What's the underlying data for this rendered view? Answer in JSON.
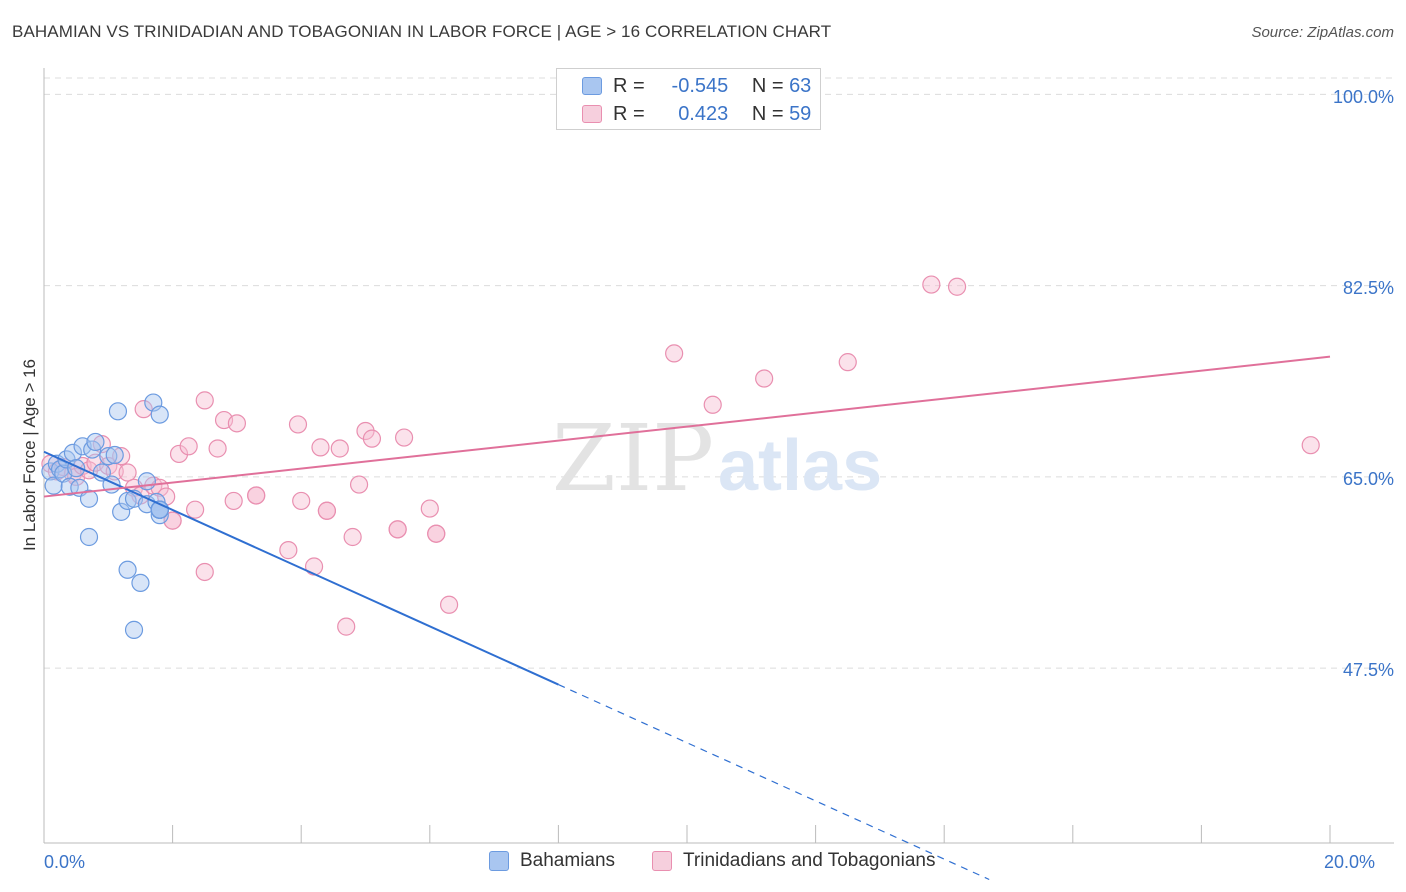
{
  "title": "BAHAMIAN VS TRINIDADIAN AND TOBAGONIAN IN LABOR FORCE | AGE > 16 CORRELATION CHART",
  "source": "Source: ZipAtlas.com",
  "watermark": {
    "zip": "ZIP",
    "atlas": "atlas"
  },
  "legend_top": {
    "rows": [
      {
        "r_label": "R =",
        "r_value": "-0.545",
        "n_label": "N =",
        "n_value": "63"
      },
      {
        "r_label": "R =",
        "r_value": "0.423",
        "n_label": "N =",
        "n_value": "59"
      }
    ]
  },
  "legend_bottom": {
    "series1": "Bahamians",
    "series2": "Trinidadians and Tobagonians"
  },
  "colors": {
    "blue_fill": "#a9c6f0",
    "blue_stroke": "#6c9be0",
    "blue_line": "#2f6fd1",
    "pink_fill": "#f6bfd2",
    "pink_stroke": "#e98fb0",
    "pink_line": "#e0709a",
    "tick_text": "#3b74c8",
    "grid": "#dcdcdc"
  },
  "chart_data": {
    "type": "scatter",
    "title": "BAHAMIAN VS TRINIDADIAN AND TOBAGONIAN IN LABOR FORCE | AGE > 16 CORRELATION CHART",
    "xlabel": "",
    "ylabel": "In Labor Force | Age > 16",
    "xlim": [
      0,
      20
    ],
    "ylim": [
      31.5,
      101.5
    ],
    "x_tick_labels": [
      "0.0%",
      "20.0%"
    ],
    "y_ticks": [
      100.0,
      82.5,
      65.0,
      47.5
    ],
    "y_tick_labels": [
      "100.0%",
      "82.5%",
      "65.0%",
      "47.5%"
    ],
    "series": [
      {
        "name": "Bahamians",
        "r": -0.545,
        "n": 63,
        "trend": {
          "x0": 0.0,
          "y0": 67.3,
          "x1": 8.0,
          "y1": 46.0,
          "dash_to_x": 20.0
        },
        "points": [
          [
            0.1,
            65.5
          ],
          [
            0.15,
            64.2
          ],
          [
            0.2,
            66.2
          ],
          [
            0.25,
            65.7
          ],
          [
            0.3,
            65.3
          ],
          [
            0.35,
            66.6
          ],
          [
            0.4,
            64.1
          ],
          [
            0.45,
            67.2
          ],
          [
            0.5,
            65.8
          ],
          [
            0.55,
            64.0
          ],
          [
            0.6,
            67.8
          ],
          [
            0.7,
            63.0
          ],
          [
            0.75,
            67.5
          ],
          [
            0.7,
            59.5
          ],
          [
            0.8,
            68.2
          ],
          [
            0.9,
            65.4
          ],
          [
            1.0,
            66.9
          ],
          [
            1.05,
            64.3
          ],
          [
            1.1,
            67.0
          ],
          [
            1.15,
            71.0
          ],
          [
            1.2,
            61.8
          ],
          [
            1.3,
            62.8
          ],
          [
            1.3,
            56.5
          ],
          [
            1.4,
            63.0
          ],
          [
            1.5,
            55.3
          ],
          [
            1.4,
            51.0
          ],
          [
            1.6,
            62.5
          ],
          [
            1.6,
            64.6
          ],
          [
            1.7,
            71.8
          ],
          [
            1.75,
            62.7
          ],
          [
            1.8,
            70.7
          ],
          [
            1.8,
            61.5
          ],
          [
            1.8,
            62.0
          ],
          [
            1.8,
            62.0
          ],
          [
            1.8,
            62.0
          ],
          [
            1.8,
            62.0
          ],
          [
            1.8,
            62.0
          ],
          [
            1.8,
            62.0
          ],
          [
            1.8,
            62.0
          ],
          [
            1.8,
            62.0
          ],
          [
            1.8,
            62.0
          ],
          [
            1.8,
            62.0
          ],
          [
            1.8,
            62.0
          ],
          [
            1.8,
            62.0
          ],
          [
            1.8,
            62.0
          ],
          [
            1.8,
            62.0
          ],
          [
            1.8,
            62.0
          ],
          [
            1.8,
            62.0
          ],
          [
            1.8,
            62.0
          ],
          [
            1.8,
            62.0
          ],
          [
            1.8,
            62.0
          ],
          [
            1.8,
            62.0
          ],
          [
            1.8,
            62.0
          ],
          [
            1.8,
            62.0
          ],
          [
            1.8,
            62.0
          ],
          [
            1.8,
            62.0
          ],
          [
            1.8,
            62.0
          ],
          [
            1.8,
            62.0
          ],
          [
            1.8,
            62.0
          ],
          [
            1.8,
            62.0
          ],
          [
            1.8,
            62.0
          ],
          [
            1.8,
            62.0
          ],
          [
            1.8,
            62.0
          ]
        ]
      },
      {
        "name": "Trinidadians and Tobagonians",
        "r": 0.423,
        "n": 59,
        "trend": {
          "x0": 0.0,
          "y0": 63.2,
          "x1": 20.0,
          "y1": 76.0
        },
        "points": [
          [
            0.1,
            66.2
          ],
          [
            0.2,
            65.5
          ],
          [
            0.3,
            65.9
          ],
          [
            0.45,
            65.3
          ],
          [
            0.5,
            65.0
          ],
          [
            0.6,
            66.0
          ],
          [
            0.7,
            65.6
          ],
          [
            0.8,
            66.3
          ],
          [
            0.9,
            68.0
          ],
          [
            1.0,
            66.0
          ],
          [
            1.1,
            65.5
          ],
          [
            1.2,
            66.9
          ],
          [
            1.3,
            65.4
          ],
          [
            1.4,
            64.0
          ],
          [
            1.5,
            63.3
          ],
          [
            1.55,
            71.2
          ],
          [
            1.7,
            64.2
          ],
          [
            1.8,
            64.0
          ],
          [
            1.9,
            63.2
          ],
          [
            2.0,
            61.0
          ],
          [
            2.1,
            67.1
          ],
          [
            2.25,
            67.8
          ],
          [
            2.35,
            62.0
          ],
          [
            2.5,
            72.0
          ],
          [
            2.5,
            56.3
          ],
          [
            2.7,
            67.6
          ],
          [
            2.8,
            70.2
          ],
          [
            2.95,
            62.8
          ],
          [
            3.0,
            69.9
          ],
          [
            3.3,
            63.3
          ],
          [
            3.8,
            58.3
          ],
          [
            3.95,
            69.8
          ],
          [
            4.0,
            62.8
          ],
          [
            4.2,
            56.8
          ],
          [
            4.3,
            67.7
          ],
          [
            4.4,
            61.9
          ],
          [
            4.6,
            67.6
          ],
          [
            4.7,
            51.3
          ],
          [
            4.8,
            59.5
          ],
          [
            4.9,
            64.3
          ],
          [
            5.0,
            69.2
          ],
          [
            5.1,
            68.5
          ],
          [
            5.5,
            60.2
          ],
          [
            5.6,
            68.6
          ],
          [
            6.0,
            62.1
          ],
          [
            6.1,
            59.8
          ],
          [
            6.3,
            53.3
          ],
          [
            9.8,
            76.3
          ],
          [
            10.4,
            71.6
          ],
          [
            11.2,
            74.0
          ],
          [
            12.5,
            75.5
          ],
          [
            13.8,
            82.6
          ],
          [
            14.2,
            82.4
          ],
          [
            19.7,
            67.9
          ],
          [
            2.0,
            61.0
          ],
          [
            3.3,
            63.3
          ],
          [
            4.4,
            61.9
          ],
          [
            5.5,
            60.2
          ],
          [
            6.1,
            59.8
          ]
        ]
      }
    ]
  }
}
